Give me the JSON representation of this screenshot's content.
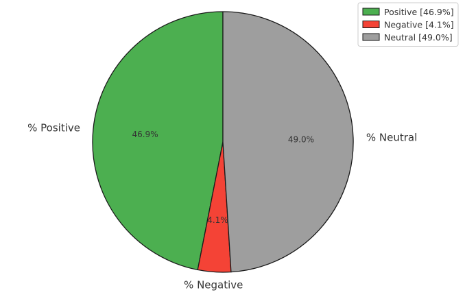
{
  "chart_data": {
    "type": "pie",
    "title": "",
    "slices": [
      {
        "label": "% Positive",
        "value": 46.9,
        "pct_label": "46.9%",
        "legend": "Positive [46.9%]",
        "color": "#4caf50"
      },
      {
        "label": "% Negative",
        "value": 4.1,
        "pct_label": "4.1%",
        "legend": "Negative [4.1%]",
        "color": "#f44336"
      },
      {
        "label": "% Neutral",
        "value": 49.0,
        "pct_label": "49.0%",
        "legend": "Neutral [49.0%]",
        "color": "#9e9e9e"
      }
    ],
    "start_angle_deg": 90,
    "direction": "counterclockwise",
    "legend_position": "top-right",
    "edge_color": "#1a1a1a"
  }
}
